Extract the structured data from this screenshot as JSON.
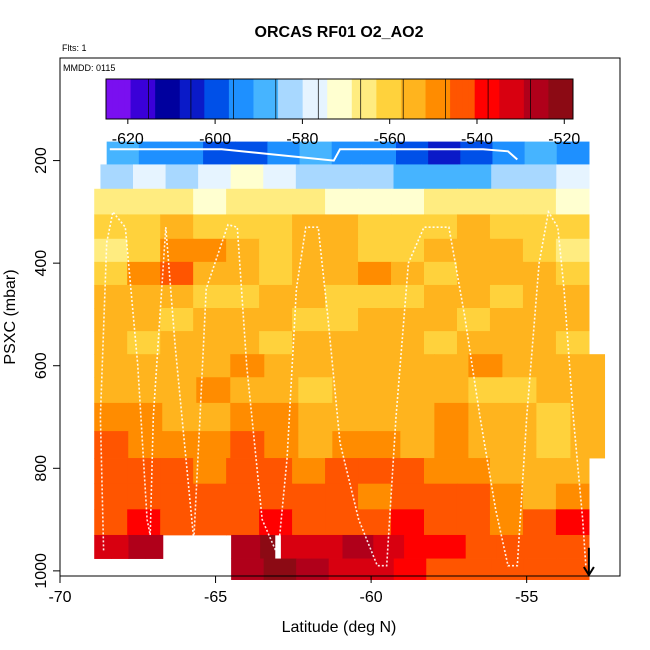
{
  "chart_data": {
    "type": "heatmap",
    "title": "ORCAS RF01 O2_AO2",
    "note_flights": "Flts: 1",
    "note_date": "MMDD: 0115",
    "xlabel": "Latitude (deg N)",
    "ylabel": "PSXC (mbar)",
    "xlim": [
      -70,
      -52
    ],
    "ylim": [
      1010,
      0
    ],
    "xticks": [
      -70,
      -65,
      -60,
      -55
    ],
    "yticks": [
      200,
      400,
      600,
      800,
      1000
    ],
    "colorbar": {
      "range": [
        -625,
        -518
      ],
      "ticks": [
        -620,
        -600,
        -580,
        -560,
        -540,
        -520
      ],
      "colors": [
        "#7a0ff0",
        "#3a00d8",
        "#00009e",
        "#0a1ac8",
        "#0050e8",
        "#1e90ff",
        "#46b4ff",
        "#a8d8ff",
        "#e6f4ff",
        "#ffffd0",
        "#ffec80",
        "#ffd23c",
        "#ffb41e",
        "#ff8c00",
        "#ff5500",
        "#ff0000",
        "#d80010",
        "#b0001a",
        "#8c0a14"
      ]
    },
    "grid": false,
    "legend_position": "top",
    "rows": [
      {
        "p": 185,
        "x0": -68.5,
        "x1": -53.0,
        "vals": [
          -590,
          -592,
          -595,
          -600,
          -598,
          -594,
          -590,
          -592,
          -596,
          -600,
          -604,
          -598,
          -594,
          -590,
          -592
        ]
      },
      {
        "p": 230,
        "x0": -68.7,
        "x1": -53.0,
        "vals": [
          -582,
          -578,
          -580,
          -576,
          -574,
          -578,
          -582,
          -580,
          -584,
          -586,
          -588,
          -590,
          -584,
          -580,
          -578
        ]
      },
      {
        "p": 280,
        "x0": -68.9,
        "x1": -53.0,
        "vals": [
          -568,
          -566,
          -568,
          -570,
          -567,
          -565,
          -568,
          -570,
          -572,
          -570,
          -568,
          -566,
          -565,
          -568,
          -570
        ]
      },
      {
        "p": 330,
        "x0": -68.9,
        "x1": -53.0,
        "vals": [
          -562,
          -558,
          -556,
          -560,
          -562,
          -558,
          -555,
          -556,
          -560,
          -562,
          -558,
          -555,
          -558,
          -560,
          -562
        ]
      },
      {
        "p": 375,
        "x0": -68.9,
        "x1": -53.0,
        "vals": [
          -566,
          -560,
          -550,
          -548,
          -556,
          -560,
          -552,
          -556,
          -562,
          -558,
          -554,
          -552,
          -556,
          -560,
          -564
        ]
      },
      {
        "p": 420,
        "x0": -68.9,
        "x1": -53.0,
        "vals": [
          -560,
          -548,
          -545,
          -552,
          -556,
          -560,
          -556,
          -552,
          -548,
          -554,
          -560,
          -556,
          -552,
          -556,
          -560
        ]
      },
      {
        "p": 465,
        "x0": -68.9,
        "x1": -53.0,
        "vals": [
          -556,
          -552,
          -555,
          -558,
          -560,
          -556,
          -554,
          -558,
          -562,
          -558,
          -554,
          -556,
          -558,
          -556,
          -554
        ]
      },
      {
        "p": 510,
        "x0": -68.9,
        "x1": -53.0,
        "vals": [
          -552,
          -555,
          -558,
          -556,
          -552,
          -554,
          -558,
          -560,
          -556,
          -552,
          -554,
          -558,
          -556,
          -552,
          -556
        ]
      },
      {
        "p": 555,
        "x0": -68.9,
        "x1": -53.0,
        "vals": [
          -556,
          -558,
          -554,
          -552,
          -556,
          -558,
          -556,
          -554,
          -552,
          -556,
          -558,
          -554,
          -552,
          -556,
          -558
        ]
      },
      {
        "p": 600,
        "x0": -68.9,
        "x1": -52.5,
        "vals": [
          -552,
          -554,
          -556,
          -552,
          -550,
          -554,
          -556,
          -552,
          -554,
          -556,
          -552,
          -550,
          -554,
          -556,
          -552
        ]
      },
      {
        "p": 645,
        "x0": -68.9,
        "x1": -52.5,
        "vals": [
          -554,
          -556,
          -552,
          -550,
          -554,
          -556,
          -558,
          -554,
          -552,
          -554,
          -556,
          -558,
          -560,
          -556,
          -554
        ]
      },
      {
        "p": 700,
        "x0": -68.9,
        "x1": -52.5,
        "vals": [
          -550,
          -548,
          -552,
          -554,
          -550,
          -548,
          -552,
          -554,
          -556,
          -552,
          -550,
          -554,
          -556,
          -558,
          -556
        ]
      },
      {
        "p": 755,
        "x0": -68.9,
        "x1": -52.5,
        "vals": [
          -546,
          -548,
          -550,
          -548,
          -546,
          -550,
          -552,
          -548,
          -550,
          -552,
          -548,
          -552,
          -556,
          -558,
          -554
        ]
      },
      {
        "p": 805,
        "x0": -68.9,
        "x1": -53.0,
        "vals": [
          -546,
          -544,
          -546,
          -548,
          -546,
          -544,
          -548,
          -546,
          -544,
          -546,
          -548,
          -550,
          -552,
          -554,
          -556
        ]
      },
      {
        "p": 855,
        "x0": -68.9,
        "x1": -53.0,
        "vals": [
          -544,
          -542,
          -544,
          -546,
          -544,
          -542,
          -544,
          -546,
          -548,
          -546,
          -544,
          -546,
          -550,
          -552,
          -550
        ]
      },
      {
        "p": 905,
        "x0": -68.9,
        "x1": -53.0,
        "vals": [
          -542,
          -540,
          -542,
          -544,
          -542,
          -540,
          -542,
          -544,
          -542,
          -540,
          -544,
          -546,
          -550,
          -544,
          -540
        ]
      },
      {
        "p": 955,
        "x0": -68.9,
        "x1": -66.7,
        "vals": [
          -532,
          -530,
          -528,
          -526
        ]
      },
      {
        "p": 955,
        "x0": -64.5,
        "x1": -63.1,
        "vals": [
          -528,
          -524,
          -522
        ]
      },
      {
        "p": 955,
        "x0": -62.9,
        "x1": -53.0,
        "vals": [
          -532,
          -530,
          -528,
          -534,
          -538,
          -540,
          -542,
          -542,
          -542,
          -542
        ]
      },
      {
        "p": 997,
        "x0": -64.5,
        "x1": -53.0,
        "vals": [
          -524,
          -522,
          -526,
          -530,
          -534,
          -540,
          -542,
          -542,
          -542,
          -542,
          -542
        ]
      }
    ],
    "flight_track": [
      [
        -68.6,
        960
      ],
      [
        -68.7,
        700
      ],
      [
        -68.5,
        360
      ],
      [
        -68.3,
        300
      ],
      [
        -67.9,
        330
      ],
      [
        -67.5,
        600
      ],
      [
        -67.2,
        900
      ],
      [
        -67.1,
        930
      ],
      [
        -67.0,
        700
      ],
      [
        -66.6,
        330
      ],
      [
        -66.3,
        560
      ],
      [
        -66.0,
        750
      ],
      [
        -65.7,
        940
      ],
      [
        -65.5,
        700
      ],
      [
        -65.3,
        450
      ],
      [
        -64.6,
        325
      ],
      [
        -64.3,
        330
      ],
      [
        -64.0,
        600
      ],
      [
        -63.5,
        900
      ],
      [
        -63.0,
        970
      ],
      [
        -62.7,
        780
      ],
      [
        -62.4,
        450
      ],
      [
        -62.1,
        330
      ],
      [
        -61.7,
        330
      ],
      [
        -61.4,
        500
      ],
      [
        -61.0,
        750
      ],
      [
        -60.4,
        900
      ],
      [
        -59.8,
        990
      ],
      [
        -59.5,
        990
      ],
      [
        -59.2,
        700
      ],
      [
        -58.8,
        400
      ],
      [
        -58.3,
        330
      ],
      [
        -57.5,
        330
      ],
      [
        -57.0,
        500
      ],
      [
        -56.5,
        700
      ],
      [
        -56.0,
        880
      ],
      [
        -55.6,
        990
      ],
      [
        -55.3,
        990
      ],
      [
        -55.0,
        700
      ],
      [
        -54.6,
        400
      ],
      [
        -54.3,
        300
      ],
      [
        -54.0,
        330
      ],
      [
        -53.8,
        450
      ],
      [
        -53.5,
        700
      ],
      [
        -53.2,
        900
      ],
      [
        -53.1,
        990
      ]
    ],
    "upper_track": [
      [
        -68.4,
        178
      ],
      [
        -64.8,
        178
      ],
      [
        -61.2,
        200
      ],
      [
        -61.0,
        178
      ],
      [
        -58.2,
        178
      ],
      [
        -56.4,
        178
      ],
      [
        -55.6,
        182
      ],
      [
        -55.3,
        198
      ]
    ],
    "arrow_at": {
      "x": -53.0,
      "p_from": 955,
      "p_to": 1010
    }
  }
}
